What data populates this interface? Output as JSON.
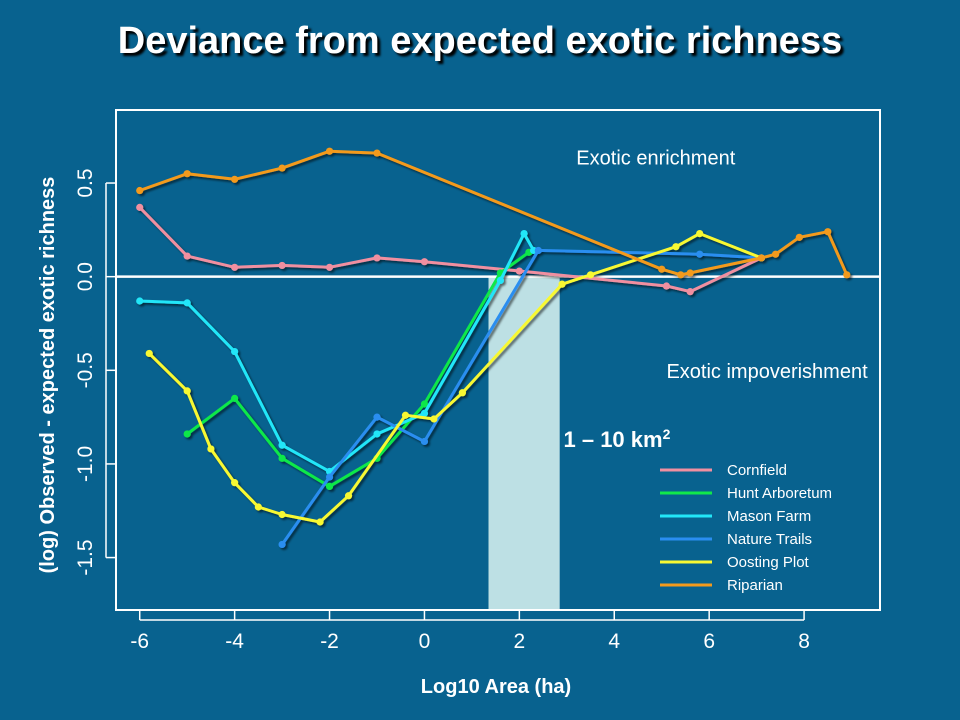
{
  "slide": {
    "title": "Deviance from expected exotic richness"
  },
  "chart_data": {
    "type": "line",
    "xlabel": "Log10 Area (ha)",
    "ylabel": "(log) Observed - expected exotic richness",
    "xlim": [
      -6.5,
      9.6
    ],
    "ylim": [
      -1.78,
      0.89
    ],
    "x_ticks": [
      -6,
      -4,
      -2,
      0,
      2,
      4,
      6,
      8
    ],
    "y_ticks": [
      -1.5,
      -1.0,
      -0.5,
      0.0,
      0.5
    ],
    "y_tick_labels": [
      "-1.5",
      "-1.0",
      "-0.5",
      "0.0",
      "0.5"
    ],
    "grid": false,
    "reference_line_y": 0,
    "highlight_band": {
      "x": [
        1.35,
        2.85
      ],
      "label": "1 – 10 km",
      "label_superscript": "2",
      "color": "#bde0e4"
    },
    "annotations": [
      {
        "text": "Exotic enrichment",
        "x": 3.2,
        "y": 0.6
      },
      {
        "text": "Exotic impoverishment",
        "x": 5.1,
        "y": -0.54
      }
    ],
    "legend_position": "bottom-right",
    "series": [
      {
        "name": "Cornfield",
        "color": "#f08fa0",
        "x": [
          -6,
          -5,
          -4,
          -3,
          -2,
          -1,
          0,
          2,
          5.1,
          5.6,
          7.1
        ],
        "y": [
          0.37,
          0.11,
          0.05,
          0.06,
          0.05,
          0.1,
          0.08,
          0.03,
          -0.05,
          -0.08,
          0.1
        ]
      },
      {
        "name": "Hunt Arboretum",
        "color": "#11e84a",
        "x": [
          -5,
          -4,
          -3,
          -2,
          -1,
          0,
          1.6,
          2.2
        ],
        "y": [
          -0.84,
          -0.65,
          -0.97,
          -1.12,
          -0.97,
          -0.68,
          0.02,
          0.13
        ]
      },
      {
        "name": "Mason Farm",
        "color": "#22e6f8",
        "x": [
          -6,
          -5,
          -4,
          -3,
          -2,
          -1,
          0,
          1.6,
          2.1,
          2.3
        ],
        "y": [
          -0.13,
          -0.14,
          -0.4,
          -0.9,
          -1.04,
          -0.84,
          -0.73,
          -0.02,
          0.23,
          0.14
        ]
      },
      {
        "name": "Nature Trails",
        "color": "#2a8ef0",
        "x": [
          -3,
          -2,
          -1,
          0,
          2.4,
          5.8,
          7.1
        ],
        "y": [
          -1.43,
          -1.07,
          -0.75,
          -0.88,
          0.14,
          0.12,
          0.1
        ]
      },
      {
        "name": "Oosting Plot",
        "color": "#f8f832",
        "x": [
          -5.8,
          -5,
          -4.5,
          -4,
          -3.5,
          -3,
          -2.2,
          -1.6,
          -0.4,
          0.2,
          0.8,
          2.9,
          3.5,
          5.3,
          5.8,
          7.1
        ],
        "y": [
          -0.41,
          -0.61,
          -0.92,
          -1.1,
          -1.23,
          -1.27,
          -1.31,
          -1.17,
          -0.74,
          -0.76,
          -0.62,
          -0.04,
          0.01,
          0.16,
          0.23,
          0.1
        ]
      },
      {
        "name": "Riparian",
        "color": "#f39a1c",
        "x": [
          -6,
          -5,
          -4,
          -3,
          -2,
          -1,
          5.0,
          5.4,
          5.6,
          7.1,
          7.4,
          7.9,
          8.5,
          8.9
        ],
        "y": [
          0.46,
          0.55,
          0.52,
          0.58,
          0.67,
          0.66,
          0.04,
          0.01,
          0.02,
          0.1,
          0.12,
          0.21,
          0.24,
          0.01
        ]
      }
    ]
  }
}
